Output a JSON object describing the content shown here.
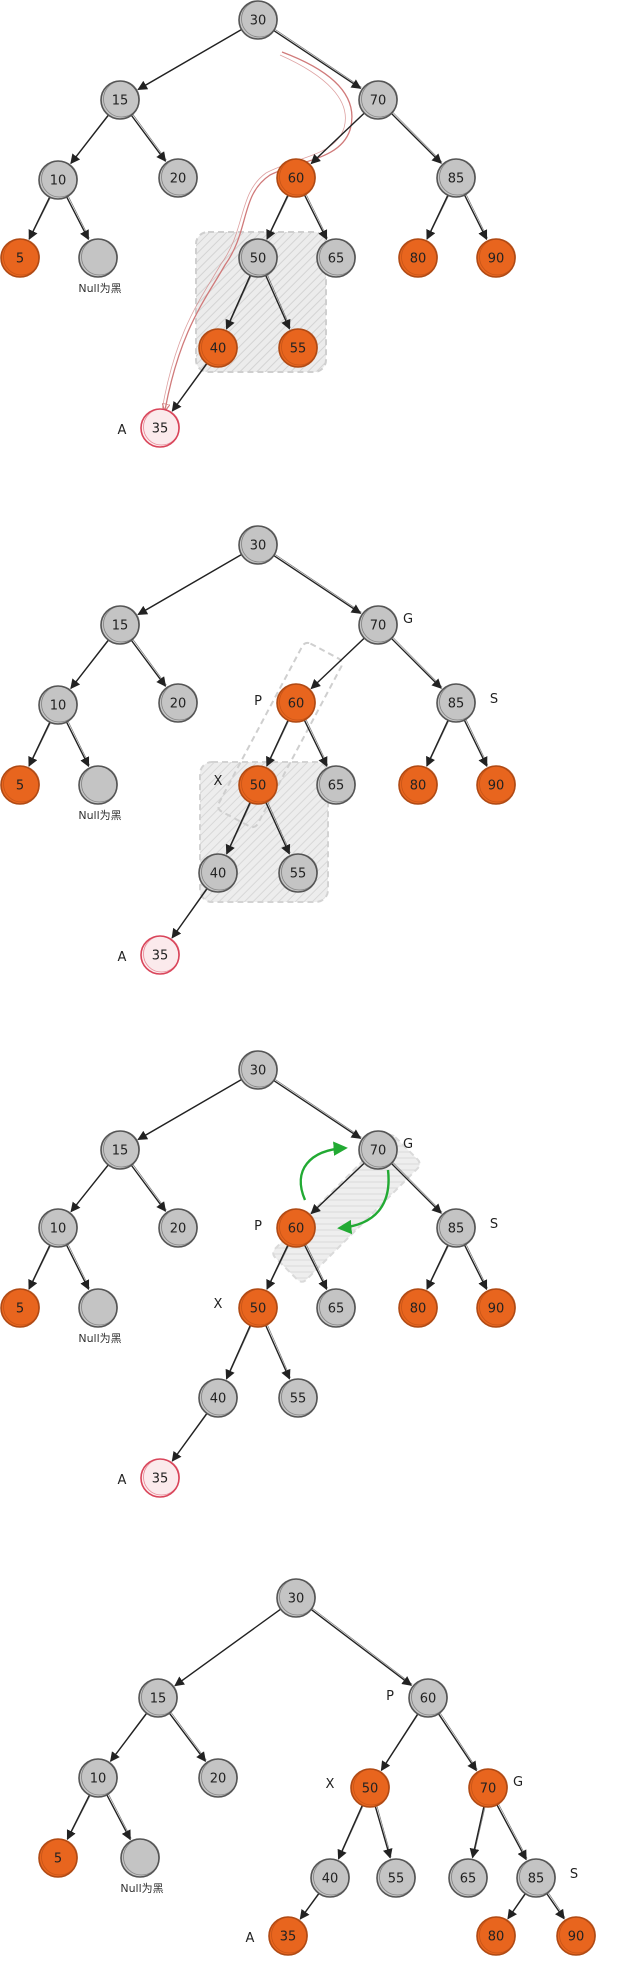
{
  "colors": {
    "red": "#e8651e",
    "black": "#c4c4c4",
    "new": "#d9455a",
    "edge": "#222222",
    "highlight": "#dddddd",
    "rotate_arrow": "#22aa33",
    "path_line": "#d07a7a"
  },
  "null_label": "Null为黑",
  "diagrams": [
    {
      "name": "step-1",
      "nodes": [
        {
          "id": "n30",
          "label": "30",
          "color": "black"
        },
        {
          "id": "n15",
          "label": "15",
          "color": "black"
        },
        {
          "id": "n70",
          "label": "70",
          "color": "black"
        },
        {
          "id": "n10",
          "label": "10",
          "color": "black"
        },
        {
          "id": "n20",
          "label": "20",
          "color": "black"
        },
        {
          "id": "n60",
          "label": "60",
          "color": "red"
        },
        {
          "id": "n85",
          "label": "85",
          "color": "black"
        },
        {
          "id": "n5",
          "label": "5",
          "color": "red"
        },
        {
          "id": "null",
          "label": "",
          "color": "black",
          "null": true
        },
        {
          "id": "n50",
          "label": "50",
          "color": "black"
        },
        {
          "id": "n65",
          "label": "65",
          "color": "black"
        },
        {
          "id": "n80",
          "label": "80",
          "color": "red"
        },
        {
          "id": "n90",
          "label": "90",
          "color": "red"
        },
        {
          "id": "n40",
          "label": "40",
          "color": "red"
        },
        {
          "id": "n55",
          "label": "55",
          "color": "red"
        },
        {
          "id": "n35",
          "label": "35",
          "color": "new"
        }
      ],
      "edges": [
        [
          "n30",
          "n15"
        ],
        [
          "n30",
          "n70"
        ],
        [
          "n15",
          "n10"
        ],
        [
          "n15",
          "n20"
        ],
        [
          "n70",
          "n60"
        ],
        [
          "n70",
          "n85"
        ],
        [
          "n10",
          "n5"
        ],
        [
          "n10",
          "null"
        ],
        [
          "n60",
          "n50"
        ],
        [
          "n60",
          "n65"
        ],
        [
          "n85",
          "n80"
        ],
        [
          "n85",
          "n90"
        ],
        [
          "n50",
          "n40"
        ],
        [
          "n50",
          "n55"
        ],
        [
          "n40",
          "n35"
        ]
      ],
      "letters": [
        {
          "text": "A",
          "near": "n35"
        }
      ]
    },
    {
      "name": "step-2",
      "nodes": [
        {
          "id": "n30",
          "label": "30",
          "color": "black"
        },
        {
          "id": "n15",
          "label": "15",
          "color": "black"
        },
        {
          "id": "n70",
          "label": "70",
          "color": "black"
        },
        {
          "id": "n10",
          "label": "10",
          "color": "black"
        },
        {
          "id": "n20",
          "label": "20",
          "color": "black"
        },
        {
          "id": "n60",
          "label": "60",
          "color": "red"
        },
        {
          "id": "n85",
          "label": "85",
          "color": "black"
        },
        {
          "id": "n5",
          "label": "5",
          "color": "red"
        },
        {
          "id": "null",
          "label": "",
          "color": "black",
          "null": true
        },
        {
          "id": "n50",
          "label": "50",
          "color": "red"
        },
        {
          "id": "n65",
          "label": "65",
          "color": "black"
        },
        {
          "id": "n80",
          "label": "80",
          "color": "red"
        },
        {
          "id": "n90",
          "label": "90",
          "color": "red"
        },
        {
          "id": "n40",
          "label": "40",
          "color": "black"
        },
        {
          "id": "n55",
          "label": "55",
          "color": "black"
        },
        {
          "id": "n35",
          "label": "35",
          "color": "new"
        }
      ],
      "edges": [
        [
          "n30",
          "n15"
        ],
        [
          "n30",
          "n70"
        ],
        [
          "n15",
          "n10"
        ],
        [
          "n15",
          "n20"
        ],
        [
          "n70",
          "n60"
        ],
        [
          "n70",
          "n85"
        ],
        [
          "n10",
          "n5"
        ],
        [
          "n10",
          "null"
        ],
        [
          "n60",
          "n50"
        ],
        [
          "n60",
          "n65"
        ],
        [
          "n85",
          "n80"
        ],
        [
          "n85",
          "n90"
        ],
        [
          "n50",
          "n40"
        ],
        [
          "n50",
          "n55"
        ],
        [
          "n40",
          "n35"
        ]
      ],
      "letters": [
        {
          "text": "A",
          "near": "n35"
        },
        {
          "text": "G",
          "near": "n70"
        },
        {
          "text": "P",
          "near": "n60"
        },
        {
          "text": "S",
          "near": "n85"
        },
        {
          "text": "X",
          "near": "n50"
        }
      ]
    },
    {
      "name": "step-3",
      "nodes": [
        {
          "id": "n30",
          "label": "30",
          "color": "black"
        },
        {
          "id": "n15",
          "label": "15",
          "color": "black"
        },
        {
          "id": "n70",
          "label": "70",
          "color": "black"
        },
        {
          "id": "n10",
          "label": "10",
          "color": "black"
        },
        {
          "id": "n20",
          "label": "20",
          "color": "black"
        },
        {
          "id": "n60",
          "label": "60",
          "color": "red"
        },
        {
          "id": "n85",
          "label": "85",
          "color": "black"
        },
        {
          "id": "n5",
          "label": "5",
          "color": "red"
        },
        {
          "id": "null",
          "label": "",
          "color": "black",
          "null": true
        },
        {
          "id": "n50",
          "label": "50",
          "color": "red"
        },
        {
          "id": "n65",
          "label": "65",
          "color": "black"
        },
        {
          "id": "n80",
          "label": "80",
          "color": "red"
        },
        {
          "id": "n90",
          "label": "90",
          "color": "red"
        },
        {
          "id": "n40",
          "label": "40",
          "color": "black"
        },
        {
          "id": "n55",
          "label": "55",
          "color": "black"
        },
        {
          "id": "n35",
          "label": "35",
          "color": "new"
        }
      ],
      "edges": [
        [
          "n30",
          "n15"
        ],
        [
          "n30",
          "n70"
        ],
        [
          "n15",
          "n10"
        ],
        [
          "n15",
          "n20"
        ],
        [
          "n70",
          "n60"
        ],
        [
          "n70",
          "n85"
        ],
        [
          "n10",
          "n5"
        ],
        [
          "n10",
          "null"
        ],
        [
          "n60",
          "n50"
        ],
        [
          "n60",
          "n65"
        ],
        [
          "n85",
          "n80"
        ],
        [
          "n85",
          "n90"
        ],
        [
          "n50",
          "n40"
        ],
        [
          "n50",
          "n55"
        ],
        [
          "n40",
          "n35"
        ]
      ],
      "letters": [
        {
          "text": "A",
          "near": "n35"
        },
        {
          "text": "G",
          "near": "n70"
        },
        {
          "text": "P",
          "near": "n60"
        },
        {
          "text": "S",
          "near": "n85"
        },
        {
          "text": "X",
          "near": "n50"
        }
      ]
    },
    {
      "name": "step-4",
      "nodes": [
        {
          "id": "n30",
          "label": "30",
          "color": "black"
        },
        {
          "id": "n15",
          "label": "15",
          "color": "black"
        },
        {
          "id": "n60",
          "label": "60",
          "color": "black"
        },
        {
          "id": "n10",
          "label": "10",
          "color": "black"
        },
        {
          "id": "n20",
          "label": "20",
          "color": "black"
        },
        {
          "id": "n50",
          "label": "50",
          "color": "red"
        },
        {
          "id": "n70",
          "label": "70",
          "color": "red"
        },
        {
          "id": "n5",
          "label": "5",
          "color": "red"
        },
        {
          "id": "null",
          "label": "",
          "color": "black",
          "null": true
        },
        {
          "id": "n40",
          "label": "40",
          "color": "black"
        },
        {
          "id": "n55",
          "label": "55",
          "color": "black"
        },
        {
          "id": "n65",
          "label": "65",
          "color": "black"
        },
        {
          "id": "n85",
          "label": "85",
          "color": "black"
        },
        {
          "id": "n35",
          "label": "35",
          "color": "red"
        },
        {
          "id": "n80",
          "label": "80",
          "color": "red"
        },
        {
          "id": "n90",
          "label": "90",
          "color": "red"
        }
      ],
      "edges": [
        [
          "n30",
          "n15"
        ],
        [
          "n30",
          "n60"
        ],
        [
          "n15",
          "n10"
        ],
        [
          "n15",
          "n20"
        ],
        [
          "n60",
          "n50"
        ],
        [
          "n60",
          "n70"
        ],
        [
          "n10",
          "n5"
        ],
        [
          "n10",
          "null"
        ],
        [
          "n50",
          "n40"
        ],
        [
          "n50",
          "n55"
        ],
        [
          "n70",
          "n65"
        ],
        [
          "n70",
          "n85"
        ],
        [
          "n40",
          "n35"
        ],
        [
          "n85",
          "n80"
        ],
        [
          "n85",
          "n90"
        ]
      ],
      "letters": [
        {
          "text": "A",
          "near": "n35"
        },
        {
          "text": "G",
          "near": "n70"
        },
        {
          "text": "P",
          "near": "n60"
        },
        {
          "text": "S",
          "near": "n85"
        },
        {
          "text": "X",
          "near": "n50"
        }
      ]
    }
  ]
}
